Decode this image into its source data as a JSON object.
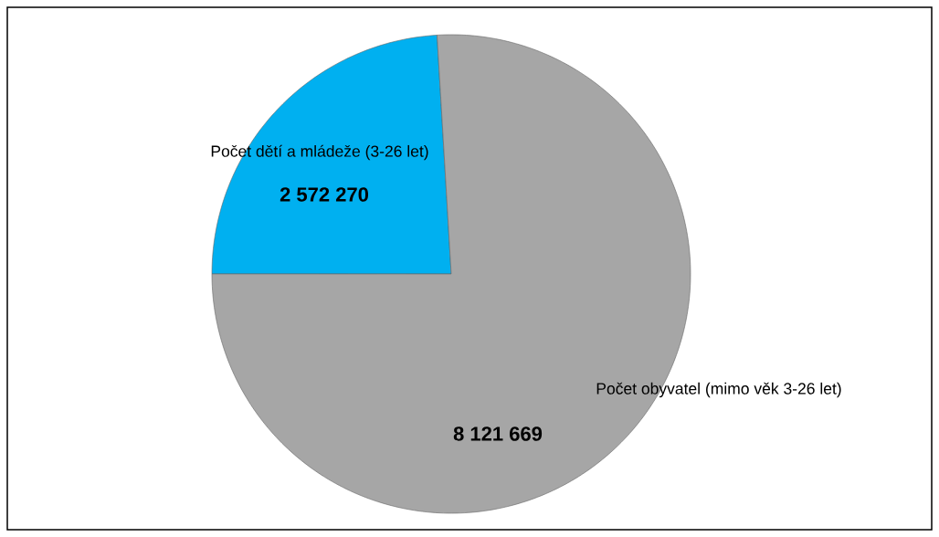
{
  "chart_data": {
    "type": "pie",
    "categories": [
      "Počet dětí a mládeže (3-26 let)",
      "Počet obyvatel (mimo věk 3-26 let)"
    ],
    "values": [
      2572270,
      8121669
    ],
    "colors": [
      "#00b0f0",
      "#a6a6a6"
    ],
    "value_labels": [
      "2 572 270",
      "8 121 669"
    ]
  }
}
